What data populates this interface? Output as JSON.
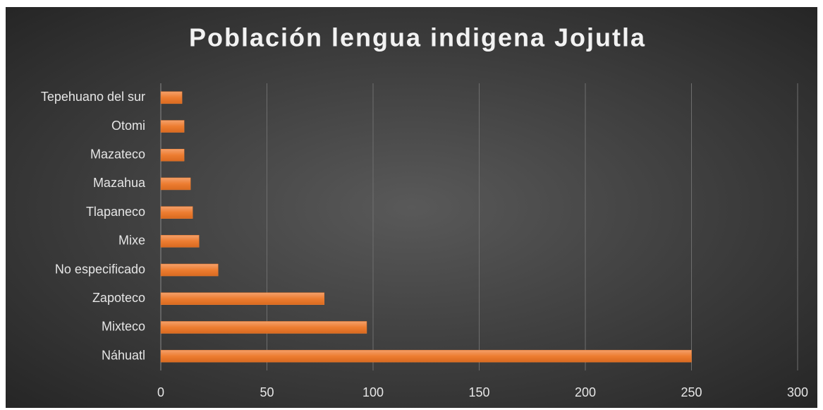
{
  "chart_data": {
    "type": "bar",
    "orientation": "horizontal",
    "title": "Población lengua indigena Jojutla",
    "categories": [
      "Náhuatl",
      "Mixteco",
      "Zapoteco",
      "No especificado",
      "Mixe",
      "Tlapaneco",
      "Mazahua",
      "Mazateco",
      "Otomi",
      "Tepehuano del sur"
    ],
    "values": [
      250,
      97,
      77,
      27,
      18,
      15,
      14,
      11,
      11,
      10
    ],
    "color": "#ed7d31",
    "xlim": [
      0,
      300
    ],
    "xticks": [
      0,
      50,
      100,
      150,
      200,
      250,
      300
    ],
    "grid": true
  }
}
